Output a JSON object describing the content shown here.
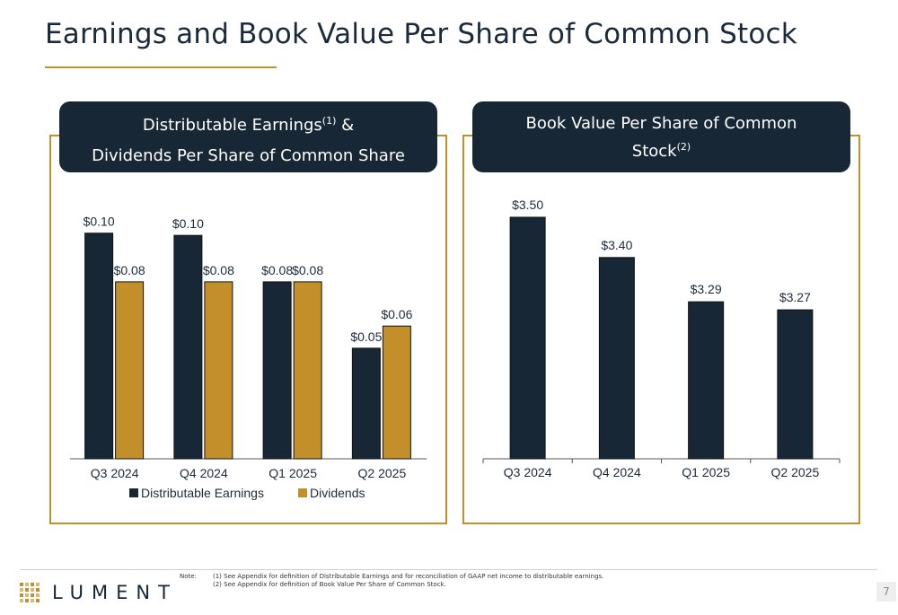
{
  "page": {
    "title": "Earnings and Book Value Per Share of Common Stock",
    "page_number": "7",
    "brand": "LUMENT",
    "colors": {
      "navy": "#172736",
      "gold": "#c38f2b"
    }
  },
  "left_panel": {
    "title_line1": "Distributable Earnings",
    "title_line1_sup": "(1)",
    "title_line1_suffix": " &",
    "title_line2": "Dividends Per Share of Common Share"
  },
  "right_panel": {
    "title_line1": "Book Value Per Share of Common",
    "title_line2": "Stock",
    "title_line2_sup": "(2)"
  },
  "chart_data": [
    {
      "type": "bar",
      "title": "Distributable Earnings(1) & Dividends Per Share of Common Share",
      "categories": [
        "Q3 2024",
        "Q4 2024",
        "Q1 2025",
        "Q2 2025"
      ],
      "series": [
        {
          "name": "Distributable Earnings",
          "values": [
            0.102,
            0.101,
            0.08,
            0.05
          ],
          "labels": [
            "$0.10",
            "$0.10",
            "$0.08",
            "$0.05"
          ],
          "color": "#172736"
        },
        {
          "name": "Dividends",
          "values": [
            0.08,
            0.08,
            0.08,
            0.06
          ],
          "labels": [
            "$0.08",
            "$0.08",
            "$0.08",
            "$0.06"
          ],
          "color": "#c38f2b"
        }
      ],
      "ylim": [
        0,
        0.11
      ],
      "legend": "bottom",
      "grid": false
    },
    {
      "type": "bar",
      "title": "Book Value Per Share of Common Stock(2)",
      "categories": [
        "Q3 2024",
        "Q4 2024",
        "Q1 2025",
        "Q2 2025"
      ],
      "series": [
        {
          "values": [
            3.5,
            3.4,
            3.29,
            3.27
          ],
          "labels": [
            "$3.50",
            "$3.40",
            "$3.29",
            "$3.27"
          ],
          "color": "#172736"
        }
      ],
      "ylim": [
        2.9,
        3.52
      ],
      "legend": "none",
      "grid": false
    }
  ],
  "notes": {
    "label": "Note:",
    "line1": "(1) See Appendix for definition of Distributable Earnings and for reconciliation of GAAP net income to distributable earnings.",
    "line2": "(2) See Appendix for definition of Book Value Per Share of Common Stock."
  }
}
